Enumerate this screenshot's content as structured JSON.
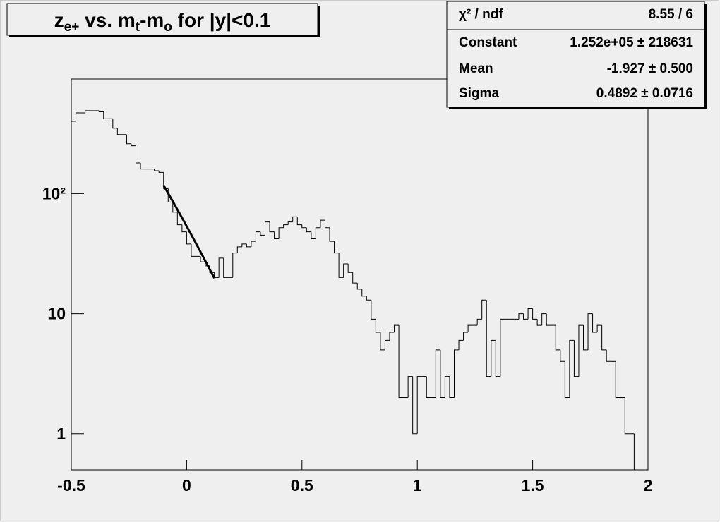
{
  "chart_data": {
    "type": "histogram",
    "title": [
      "z",
      "e+",
      " vs. m",
      "t",
      "-m",
      "o",
      " for |y|<0.1"
    ],
    "color": "#000000",
    "log_y": true,
    "grid": false,
    "xlim": [
      -0.5,
      2.0
    ],
    "ylim": [
      0.5,
      900
    ],
    "xticks": [
      -0.5,
      0,
      0.5,
      1,
      1.5,
      2
    ],
    "yticks": [
      1,
      10,
      {
        "value": 100,
        "label": "10²"
      }
    ],
    "bins": [
      -0.5,
      -0.48,
      -0.46,
      -0.44,
      -0.42,
      -0.4,
      -0.38,
      -0.36,
      -0.34,
      -0.32,
      -0.3,
      -0.28,
      -0.26,
      -0.24,
      -0.22,
      -0.2,
      -0.18,
      -0.16,
      -0.14,
      -0.12,
      -0.1,
      -0.08,
      -0.06,
      -0.04,
      -0.02,
      0,
      0.02,
      0.04,
      0.06,
      0.08,
      0.1,
      0.12,
      0.14,
      0.16,
      0.18,
      0.2,
      0.22,
      0.24,
      0.26,
      0.28,
      0.3,
      0.32,
      0.34,
      0.36,
      0.38,
      0.4,
      0.42,
      0.44,
      0.46,
      0.48,
      0.5,
      0.52,
      0.54,
      0.56,
      0.58,
      0.6,
      0.62,
      0.64,
      0.66,
      0.68,
      0.7,
      0.72,
      0.74,
      0.76,
      0.78,
      0.8,
      0.82,
      0.84,
      0.86,
      0.88,
      0.9,
      0.92,
      0.94,
      0.96,
      0.98,
      1.0,
      1.02,
      1.04,
      1.06,
      1.08,
      1.1,
      1.12,
      1.14,
      1.16,
      1.18,
      1.2,
      1.22,
      1.24,
      1.26,
      1.28,
      1.3,
      1.32,
      1.34,
      1.36,
      1.38,
      1.4,
      1.42,
      1.44,
      1.46,
      1.48,
      1.5,
      1.52,
      1.54,
      1.56,
      1.58,
      1.6,
      1.62,
      1.64,
      1.66,
      1.68,
      1.7,
      1.72,
      1.74,
      1.76,
      1.78,
      1.8,
      1.82,
      1.84,
      1.86,
      1.88,
      1.9,
      1.92,
      1.94,
      1.96,
      1.98,
      2.0
    ],
    "values": [
      400,
      470,
      470,
      490,
      490,
      490,
      480,
      420,
      420,
      350,
      310,
      310,
      260,
      250,
      180,
      160,
      160,
      160,
      155,
      150,
      110,
      85,
      70,
      55,
      48,
      38,
      30,
      30,
      27,
      25,
      22,
      20,
      29,
      20,
      20,
      32,
      36,
      38,
      36,
      40,
      48,
      45,
      58,
      48,
      42,
      52,
      55,
      58,
      64,
      55,
      52,
      48,
      42,
      52,
      60,
      52,
      40,
      32,
      20,
      26,
      22,
      18,
      16,
      14,
      13,
      9,
      7,
      5,
      6,
      7,
      8,
      2,
      2,
      3,
      1,
      3,
      3,
      2,
      2,
      5,
      2,
      3,
      2,
      5,
      6,
      7,
      8,
      8,
      9,
      13,
      3,
      6,
      3,
      9,
      9,
      9,
      9,
      10,
      9,
      11,
      9,
      8,
      10,
      8,
      8,
      5,
      4,
      2,
      6,
      3,
      8,
      5,
      10,
      7,
      8,
      5,
      4,
      4,
      2,
      2,
      1,
      1,
      0,
      0,
      0
    ],
    "fit": {
      "constant": 125200,
      "mean": -1.927,
      "sigma": 0.4892,
      "range": [
        -0.1,
        0.12
      ]
    },
    "stats": [
      {
        "label": "χ² / ndf",
        "value": "8.55 / 6"
      },
      {
        "label": "Constant",
        "value": "1.252e+05 ± 218631"
      },
      {
        "label": "Mean",
        "value": "-1.927 ± 0.500"
      },
      {
        "label": "Sigma",
        "value": "0.4892 ± 0.0716"
      }
    ]
  }
}
